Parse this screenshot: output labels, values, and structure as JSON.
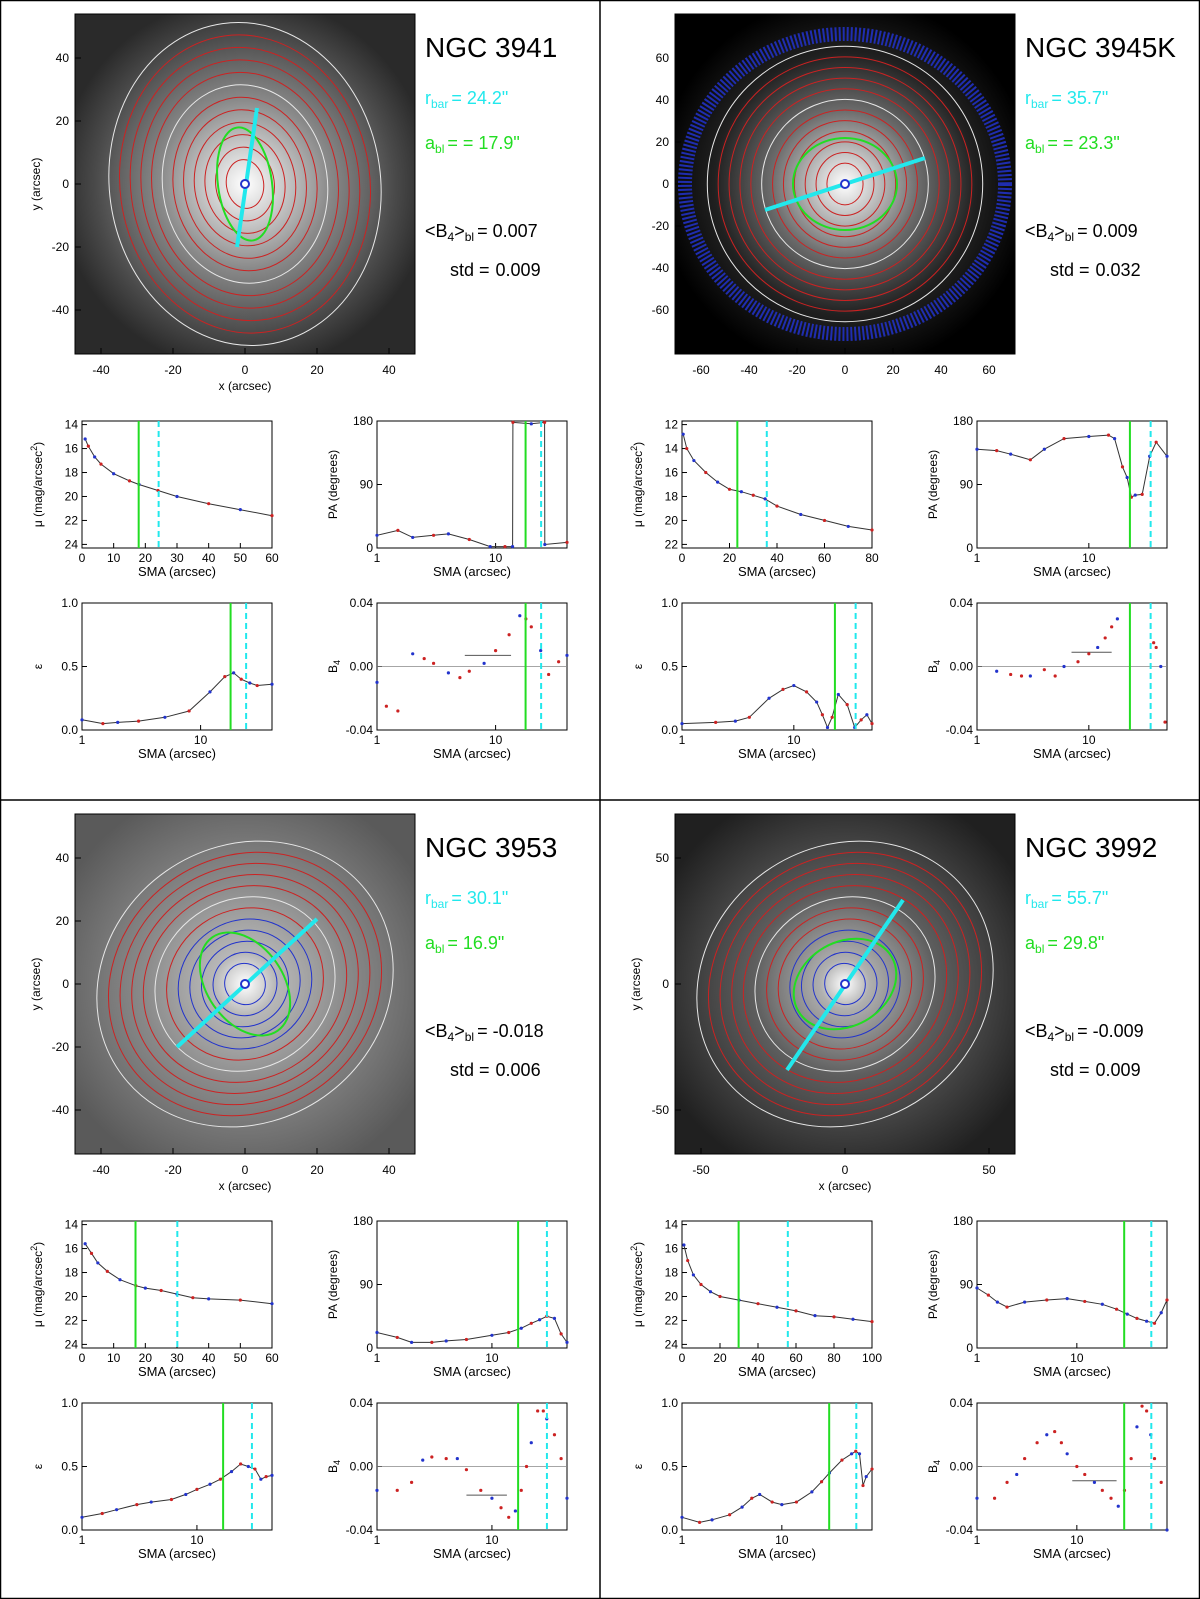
{
  "figure_title": "",
  "panels": [
    {
      "galaxy": "NGC 3941",
      "r_bar": "r_bar = 24.2\"",
      "r_bar_sub": "bar",
      "r_bar_value": "= 24.2\"",
      "a_bl_sub": "bl",
      "a_bl_value": "= = 17.9\"",
      "b4_label": "<B",
      "b4_label_sub": "4",
      "b4_label_tail": ">",
      "b4_label_tail_sub": "bl",
      "b4_value": "= 0.007",
      "std_label": "std =",
      "std_value": "0.009",
      "image_axes": {
        "xlabel": "x (arcsec)",
        "ylabel": "y (arcsec)",
        "xticks": [
          "-40",
          "-20",
          "0",
          "20",
          "40"
        ],
        "yticks": [
          "40",
          "20",
          "0",
          "-20",
          "-40"
        ]
      },
      "r_bar_arcsec": 24.2,
      "a_bl_arcsec": 17.9,
      "b4_mean": 0.007,
      "std": 0.009
    },
    {
      "galaxy": "NGC 3945K",
      "r_bar_sub": "bar",
      "r_bar_value": "= 35.7\"",
      "a_bl_sub": "bl",
      "a_bl_value": "= = 23.3\"",
      "b4_label": "<B",
      "b4_label_sub": "4",
      "b4_label_tail": ">",
      "b4_label_tail_sub": "bl",
      "b4_value": "= 0.009",
      "std_label": "std =",
      "std_value": "0.032",
      "image_axes": {
        "xlabel": "",
        "ylabel": "",
        "xticks": [
          "-60",
          "-40",
          "-20",
          "0",
          "20",
          "40",
          "60"
        ],
        "yticks": [
          "60",
          "40",
          "20",
          "0",
          "-20",
          "-40",
          "-60"
        ]
      },
      "r_bar_arcsec": 35.7,
      "a_bl_arcsec": 23.3,
      "b4_mean": 0.009,
      "std": 0.032
    },
    {
      "galaxy": "NGC 3953",
      "r_bar_sub": "bar",
      "r_bar_value": "= 30.1\"",
      "a_bl_sub": "bl",
      "a_bl_value": "= 16.9\"",
      "b4_label": "<B",
      "b4_label_sub": "4",
      "b4_label_tail": ">",
      "b4_label_tail_sub": "bl",
      "b4_value": "= -0.018",
      "std_label": "std =",
      "std_value": "0.006",
      "image_axes": {
        "xlabel": "x (arcsec)",
        "ylabel": "y (arcsec)",
        "xticks": [
          "-40",
          "-20",
          "0",
          "20",
          "40"
        ],
        "yticks": [
          "40",
          "20",
          "0",
          "-20",
          "-40"
        ]
      },
      "r_bar_arcsec": 30.1,
      "a_bl_arcsec": 16.9,
      "b4_mean": -0.018,
      "std": 0.006
    },
    {
      "galaxy": "NGC 3992",
      "r_bar_sub": "bar",
      "r_bar_value": "= 55.7\"",
      "a_bl_sub": "bl",
      "a_bl_value": "= 29.8\"",
      "b4_label": "<B",
      "b4_label_sub": "4",
      "b4_label_tail": ">",
      "b4_label_tail_sub": "bl",
      "b4_value": "= -0.009",
      "std_label": "std =",
      "std_value": "0.009",
      "image_axes": {
        "xlabel": "x (arcsec)",
        "ylabel": "y (arcsec)",
        "xticks": [
          "-50",
          "0",
          "50"
        ],
        "yticks": [
          "50",
          "0",
          "-50"
        ]
      },
      "r_bar_arcsec": 55.7,
      "a_bl_arcsec": 29.8,
      "b4_mean": -0.009,
      "std": 0.009
    }
  ],
  "profile_labels": {
    "mu_ylabel": "μ (mag/arcsec",
    "mu_ylabel_sup": "2",
    "mu_ylabel_tail": ")",
    "pa_ylabel": "PA (degrees)",
    "eps_ylabel": "ε",
    "b4_ylabel": "B",
    "b4_ylabel_sub": "4",
    "xlabel": "SMA (arcsec)"
  },
  "chart_data": [
    {
      "galaxy": "NGC 3941",
      "type": "line",
      "ylabel": "μ (mag/arcsec2)",
      "xlabel": "SMA (arcsec)",
      "xticks": [
        "0",
        "10",
        "20",
        "30",
        "40",
        "50",
        "60"
      ],
      "yticks": [
        "14",
        "16",
        "18",
        "20",
        "22",
        "24"
      ],
      "xlim": [
        0,
        60
      ],
      "ylim": [
        24.3,
        13.7
      ],
      "x": [
        1,
        2,
        4,
        6,
        10,
        15,
        18,
        24,
        30,
        40,
        50,
        60
      ],
      "y": [
        15.2,
        15.8,
        16.7,
        17.3,
        18.1,
        18.7,
        19.0,
        19.5,
        20.0,
        20.6,
        21.1,
        21.6
      ],
      "vlines": {
        "a_bl": 17.9,
        "r_bar": 24.2
      }
    },
    {
      "galaxy": "NGC 3941",
      "type": "line",
      "ylabel": "PA (degrees)",
      "xlabel": "SMA (arcsec)",
      "xscale": "log",
      "xticks": [
        "1",
        "10"
      ],
      "yticks": [
        "180",
        "90",
        "0"
      ],
      "xlim": [
        1,
        40
      ],
      "ylim": [
        0,
        180
      ],
      "x": [
        1,
        1.5,
        2,
        3,
        4,
        6,
        9,
        12,
        13.9,
        14,
        20,
        25.9,
        26,
        40
      ],
      "y": [
        18,
        25,
        15,
        18,
        20,
        12,
        2,
        2,
        2,
        178,
        176,
        178,
        5,
        8
      ],
      "vlines": {
        "a_bl": 17.9,
        "r_bar": 24.2
      }
    },
    {
      "galaxy": "NGC 3941",
      "type": "line",
      "ylabel": "ε",
      "xlabel": "SMA (arcsec)",
      "xscale": "log",
      "xticks": [
        "1",
        "10"
      ],
      "yticks": [
        "1.0",
        "0.5",
        "0.0"
      ],
      "xlim": [
        1,
        40
      ],
      "ylim": [
        0,
        1
      ],
      "x": [
        1,
        1.5,
        2,
        3,
        5,
        8,
        12,
        16,
        19,
        22,
        26,
        30,
        40
      ],
      "y": [
        0.08,
        0.05,
        0.06,
        0.07,
        0.1,
        0.15,
        0.3,
        0.42,
        0.45,
        0.4,
        0.37,
        0.35,
        0.36
      ],
      "vlines": {
        "a_bl": 17.9,
        "r_bar": 24.2
      }
    },
    {
      "galaxy": "NGC 3941",
      "type": "scatter",
      "ylabel": "B4",
      "xlabel": "SMA (arcsec)",
      "xscale": "log",
      "xticks": [
        "1",
        "10"
      ],
      "yticks": [
        "0.04",
        "0.00",
        "-0.04"
      ],
      "xlim": [
        1,
        40
      ],
      "ylim": [
        -0.04,
        0.04
      ],
      "x": [
        1,
        1.2,
        1.5,
        2,
        2.5,
        3,
        4,
        5,
        6,
        8,
        10,
        13,
        16,
        18,
        20,
        24,
        28,
        34,
        40
      ],
      "y": [
        -0.01,
        -0.025,
        -0.028,
        0.008,
        0.005,
        0.002,
        -0.004,
        -0.007,
        -0.003,
        0.002,
        0.01,
        0.02,
        0.032,
        0.03,
        0.025,
        0.01,
        -0.005,
        0.003,
        0.007
      ],
      "vlines": {
        "a_bl": 17.9,
        "r_bar": 24.2
      },
      "hline": {
        "x": [
          5.5,
          13.5
        ],
        "y": 0.007
      }
    },
    {
      "galaxy": "NGC 3945K",
      "type": "line",
      "ylabel": "μ (mag/arcsec2)",
      "xlabel": "SMA (arcsec)",
      "xticks": [
        "0",
        "20",
        "40",
        "60",
        "80"
      ],
      "yticks": [
        "12",
        "14",
        "16",
        "18",
        "20",
        "22"
      ],
      "xlim": [
        0,
        80
      ],
      "ylim": [
        22.3,
        11.7
      ],
      "x": [
        0.5,
        2,
        5,
        10,
        15,
        20,
        25,
        30,
        35,
        40,
        50,
        60,
        70,
        80
      ],
      "y": [
        12.8,
        14.0,
        15.0,
        16.0,
        16.8,
        17.4,
        17.6,
        17.9,
        18.2,
        18.8,
        19.5,
        20.0,
        20.5,
        20.8
      ],
      "vlines": {
        "a_bl": 23.3,
        "r_bar": 35.7
      }
    },
    {
      "galaxy": "NGC 3945K",
      "type": "line",
      "ylabel": "PA (degrees)",
      "xlabel": "SMA (arcsec)",
      "xscale": "log",
      "xticks": [
        "1",
        "10"
      ],
      "yticks": [
        "180",
        "90",
        "0"
      ],
      "xlim": [
        1,
        50
      ],
      "ylim": [
        0,
        180
      ],
      "x": [
        1,
        1.5,
        2,
        3,
        4,
        6,
        10,
        15,
        17,
        20,
        22,
        24,
        26,
        30,
        35,
        40,
        50
      ],
      "y": [
        140,
        138,
        133,
        125,
        140,
        155,
        158,
        160,
        155,
        115,
        100,
        72,
        75,
        76,
        130,
        150,
        130
      ],
      "vlines": {
        "a_bl": 23.3,
        "r_bar": 35.7
      }
    },
    {
      "galaxy": "NGC 3945K",
      "type": "line",
      "ylabel": "ε",
      "xlabel": "SMA (arcsec)",
      "xscale": "log",
      "xticks": [
        "1",
        "10"
      ],
      "yticks": [
        "1.0",
        "0.5",
        "0.0"
      ],
      "xlim": [
        1,
        50
      ],
      "ylim": [
        0,
        1
      ],
      "x": [
        1,
        2,
        3,
        4,
        6,
        8,
        10,
        13,
        16,
        18,
        20,
        22,
        25,
        30,
        35,
        40,
        45,
        50
      ],
      "y": [
        0.05,
        0.06,
        0.07,
        0.1,
        0.25,
        0.32,
        0.35,
        0.3,
        0.22,
        0.12,
        0.02,
        0.1,
        0.28,
        0.2,
        0.02,
        0.08,
        0.12,
        0.05
      ],
      "vlines": {
        "a_bl": 23.3,
        "r_bar": 35.7
      }
    },
    {
      "galaxy": "NGC 3945K",
      "type": "scatter",
      "ylabel": "B4",
      "xlabel": "SMA (arcsec)",
      "xscale": "log",
      "xticks": [
        "1",
        "10"
      ],
      "yticks": [
        "0.04",
        "0.00",
        "-0.04"
      ],
      "xlim": [
        1,
        50
      ],
      "ylim": [
        -0.04,
        0.04
      ],
      "x": [
        1.5,
        2,
        2.5,
        3,
        4,
        5,
        6,
        8,
        10,
        12,
        14,
        16,
        18,
        38,
        40,
        44,
        48
      ],
      "y": [
        -0.003,
        -0.005,
        -0.006,
        -0.006,
        -0.002,
        -0.006,
        0.0,
        0.003,
        0.008,
        0.012,
        0.018,
        0.025,
        0.03,
        0.015,
        0.012,
        0.0,
        -0.035
      ],
      "vlines": {
        "a_bl": 23.3,
        "r_bar": 35.7
      },
      "hline": {
        "x": [
          7,
          16
        ],
        "y": 0.009
      }
    },
    {
      "galaxy": "NGC 3953",
      "type": "line",
      "ylabel": "μ (mag/arcsec2)",
      "xlabel": "SMA (arcsec)",
      "xticks": [
        "0",
        "10",
        "20",
        "30",
        "40",
        "50",
        "60"
      ],
      "yticks": [
        "14",
        "16",
        "18",
        "20",
        "22",
        "24"
      ],
      "xlim": [
        0,
        60
      ],
      "ylim": [
        24.3,
        13.7
      ],
      "x": [
        1,
        3,
        5,
        8,
        12,
        17,
        20,
        25,
        30,
        35,
        40,
        50,
        60
      ],
      "y": [
        15.6,
        16.4,
        17.2,
        17.9,
        18.6,
        19.1,
        19.3,
        19.5,
        19.8,
        20.1,
        20.2,
        20.3,
        20.6
      ],
      "vlines": {
        "a_bl": 16.9,
        "r_bar": 30.1
      }
    },
    {
      "galaxy": "NGC 3953",
      "type": "line",
      "ylabel": "PA (degrees)",
      "xlabel": "SMA (arcsec)",
      "xscale": "log",
      "xticks": [
        "1",
        "10"
      ],
      "yticks": [
        "180",
        "90",
        "0"
      ],
      "xlim": [
        1,
        45
      ],
      "ylim": [
        0,
        180
      ],
      "x": [
        1,
        1.5,
        2,
        3,
        4,
        6,
        10,
        14,
        18,
        22,
        26,
        30,
        35,
        40,
        45
      ],
      "y": [
        22,
        15,
        8,
        8,
        10,
        12,
        18,
        22,
        28,
        35,
        40,
        45,
        42,
        20,
        8
      ],
      "vlines": {
        "a_bl": 16.9,
        "r_bar": 30.1
      }
    },
    {
      "galaxy": "NGC 3953",
      "type": "line",
      "ylabel": "ε",
      "xlabel": "SMA (arcsec)",
      "xscale": "log",
      "xticks": [
        "1",
        "10"
      ],
      "yticks": [
        "1.0",
        "0.5",
        "0.0"
      ],
      "xlim": [
        1,
        45
      ],
      "ylim": [
        0,
        1
      ],
      "x": [
        1,
        1.5,
        2,
        3,
        4,
        6,
        8,
        10,
        13,
        16,
        20,
        24,
        28,
        32,
        36,
        40,
        45
      ],
      "y": [
        0.1,
        0.13,
        0.16,
        0.2,
        0.22,
        0.24,
        0.28,
        0.32,
        0.36,
        0.4,
        0.46,
        0.52,
        0.5,
        0.48,
        0.4,
        0.42,
        0.43
      ],
      "vlines": {
        "a_bl": 16.9,
        "r_bar": 30.1
      }
    },
    {
      "galaxy": "NGC 3953",
      "type": "scatter",
      "ylabel": "B4",
      "xlabel": "SMA (arcsec)",
      "xscale": "log",
      "xticks": [
        "1",
        "10"
      ],
      "yticks": [
        "0.04",
        "0.00",
        "-0.04"
      ],
      "xlim": [
        1,
        45
      ],
      "ylim": [
        -0.04,
        0.04
      ],
      "x": [
        1,
        1.5,
        2,
        2.5,
        3,
        4,
        5,
        6,
        8,
        10,
        12,
        14,
        16,
        18,
        20,
        22,
        25,
        28,
        30,
        35,
        40,
        45
      ],
      "y": [
        -0.015,
        -0.015,
        -0.01,
        0.004,
        0.006,
        0.005,
        0.005,
        -0.002,
        -0.015,
        -0.02,
        -0.026,
        -0.032,
        -0.028,
        -0.015,
        0.0,
        0.015,
        0.035,
        0.035,
        0.03,
        0.02,
        0.005,
        -0.02
      ],
      "vlines": {
        "a_bl": 16.9,
        "r_bar": 30.1
      },
      "hline": {
        "x": [
          6,
          13.5
        ],
        "y": -0.018
      }
    },
    {
      "galaxy": "NGC 3992",
      "type": "line",
      "ylabel": "μ (mag/arcsec2)",
      "xlabel": "SMA (arcsec)",
      "xticks": [
        "0",
        "20",
        "40",
        "60",
        "80",
        "100"
      ],
      "yticks": [
        "14",
        "16",
        "18",
        "20",
        "22",
        "24"
      ],
      "xlim": [
        0,
        100
      ],
      "ylim": [
        24.3,
        13.7
      ],
      "x": [
        1,
        3,
        6,
        10,
        15,
        20,
        30,
        40,
        50,
        60,
        70,
        80,
        90,
        100
      ],
      "y": [
        15.7,
        17.0,
        18.2,
        19.0,
        19.6,
        20.0,
        20.3,
        20.6,
        20.9,
        21.2,
        21.6,
        21.7,
        21.9,
        22.1
      ],
      "vlines": {
        "a_bl": 29.8,
        "r_bar": 55.7
      }
    },
    {
      "galaxy": "NGC 3992",
      "type": "line",
      "ylabel": "PA (degrees)",
      "xlabel": "SMA (arcsec)",
      "xscale": "log",
      "xticks": [
        "1",
        "10"
      ],
      "yticks": [
        "180",
        "90",
        "0"
      ],
      "xlim": [
        1,
        80
      ],
      "ylim": [
        0,
        180
      ],
      "x": [
        1,
        1.3,
        1.6,
        2,
        3,
        5,
        8,
        12,
        18,
        25,
        32,
        40,
        50,
        60,
        70,
        80
      ],
      "y": [
        85,
        75,
        65,
        58,
        65,
        68,
        70,
        66,
        62,
        55,
        48,
        42,
        38,
        35,
        50,
        68
      ],
      "vlines": {
        "a_bl": 29.8,
        "r_bar": 55.7
      }
    },
    {
      "galaxy": "NGC 3992",
      "type": "line",
      "ylabel": "ε",
      "xlabel": "SMA (arcsec)",
      "xscale": "log",
      "xticks": [
        "1",
        "10"
      ],
      "yticks": [
        "1.0",
        "0.5",
        "0.0"
      ],
      "xlim": [
        1,
        80
      ],
      "ylim": [
        0,
        1
      ],
      "x": [
        1,
        1.5,
        2,
        3,
        4,
        5,
        6,
        8,
        10,
        14,
        20,
        25,
        30,
        40,
        50,
        55,
        60,
        65,
        70,
        80
      ],
      "y": [
        0.1,
        0.06,
        0.08,
        0.12,
        0.18,
        0.25,
        0.28,
        0.22,
        0.2,
        0.22,
        0.3,
        0.38,
        0.45,
        0.55,
        0.6,
        0.62,
        0.6,
        0.35,
        0.42,
        0.48
      ],
      "vlines": {
        "a_bl": 29.8,
        "r_bar": 55.7
      }
    },
    {
      "galaxy": "NGC 3992",
      "type": "scatter",
      "ylabel": "B4",
      "xlabel": "SMA (arcsec)",
      "xscale": "log",
      "xticks": [
        "1",
        "10"
      ],
      "yticks": [
        "0.04",
        "0.00",
        "-0.04"
      ],
      "xlim": [
        1,
        80
      ],
      "ylim": [
        -0.04,
        0.04
      ],
      "x": [
        1,
        1.5,
        2,
        2.5,
        3,
        4,
        5,
        6,
        7,
        8,
        10,
        12,
        15,
        18,
        22,
        26,
        30,
        35,
        40,
        45,
        50,
        55,
        60,
        70,
        80
      ],
      "y": [
        -0.02,
        -0.02,
        -0.01,
        -0.005,
        0.005,
        0.015,
        0.02,
        0.022,
        0.015,
        0.008,
        0.0,
        -0.005,
        -0.01,
        -0.015,
        -0.02,
        -0.025,
        -0.015,
        0.005,
        0.025,
        0.038,
        0.035,
        0.02,
        0.005,
        -0.01,
        -0.04
      ],
      "vlines": {
        "a_bl": 29.8,
        "r_bar": 55.7
      },
      "hline": {
        "x": [
          9,
          25
        ],
        "y": -0.009
      }
    }
  ],
  "colors": {
    "bar": "#22e8ec",
    "bl": "#22dd22",
    "red": "#cc2222",
    "blue": "#2233cc",
    "contour_white": "#e8e8e8"
  }
}
